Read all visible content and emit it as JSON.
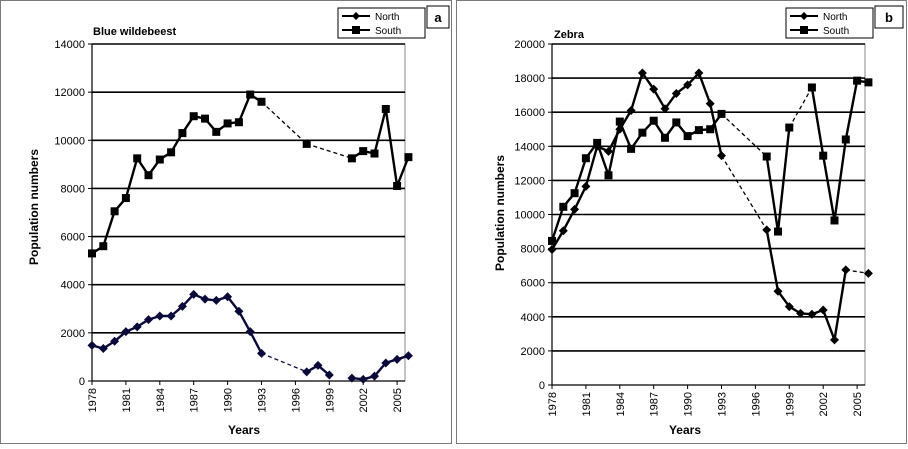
{
  "chart_data": [
    {
      "type": "line",
      "panel_label": "a",
      "title": "Blue wildebeest",
      "xlabel": "Years",
      "ylabel": "Population numbers",
      "xlim": [
        1978,
        2005
      ],
      "ylim": [
        0,
        14000
      ],
      "y_ticks": [
        0,
        2000,
        4000,
        6000,
        8000,
        10000,
        12000,
        14000
      ],
      "y_tick_labels": [
        "0",
        "2000",
        "4000",
        "6000",
        "8000",
        "10000",
        "12000",
        "14000"
      ],
      "x_ticks": [
        1978,
        1981,
        1984,
        1987,
        1990,
        1993,
        1996,
        1999,
        2002,
        2005
      ],
      "x_tick_labels": [
        "1978",
        "1981",
        "1984",
        "1987",
        "1990",
        "1993",
        "1996",
        "1999",
        "2002",
        "2005"
      ],
      "grid": "horizontal",
      "legend_position": "top-right",
      "series": [
        {
          "name": "North",
          "marker": "diamond",
          "color": "#0a0a3a",
          "segments": [
            [
              [
                1978,
                1480
              ],
              [
                1979,
                1350
              ],
              [
                1980,
                1650
              ],
              [
                1981,
                2050
              ],
              [
                1982,
                2250
              ],
              [
                1983,
                2550
              ],
              [
                1984,
                2700
              ],
              [
                1985,
                2700
              ],
              [
                1986,
                3100
              ],
              [
                1987,
                3600
              ],
              [
                1988,
                3400
              ],
              [
                1989,
                3350
              ],
              [
                1990,
                3500
              ],
              [
                1991,
                2900
              ],
              [
                1992,
                2050
              ],
              [
                1993,
                1150
              ]
            ],
            [
              [
                1997,
                380
              ],
              [
                1998,
                650
              ],
              [
                1999,
                250
              ]
            ],
            [
              [
                2001,
                120
              ],
              [
                2002,
                70
              ],
              [
                2003,
                200
              ],
              [
                2004,
                750
              ],
              [
                2005,
                900
              ],
              [
                2006,
                1050
              ]
            ]
          ],
          "gaps": [
            [
              [
                1993,
                1150
              ],
              [
                1997,
                380
              ]
            ]
          ]
        },
        {
          "name": "South",
          "marker": "square",
          "color": "#000000",
          "segments": [
            [
              [
                1978,
                5300
              ],
              [
                1979,
                5600
              ],
              [
                1980,
                7050
              ],
              [
                1981,
                7600
              ],
              [
                1982,
                9250
              ],
              [
                1983,
                8550
              ],
              [
                1984,
                9200
              ],
              [
                1985,
                9500
              ],
              [
                1986,
                10300
              ],
              [
                1987,
                11000
              ],
              [
                1988,
                10900
              ],
              [
                1989,
                10350
              ],
              [
                1990,
                10700
              ],
              [
                1991,
                10750
              ],
              [
                1992,
                11900
              ],
              [
                1993,
                11600
              ]
            ],
            [
              [
                2001,
                9250
              ],
              [
                2002,
                9550
              ],
              [
                2003,
                9450
              ],
              [
                2004,
                11300
              ],
              [
                2005,
                8100
              ],
              [
                2006,
                9300
              ]
            ]
          ],
          "gaps": [
            [
              [
                1993,
                11600
              ],
              [
                1997,
                9850
              ]
            ],
            [
              [
                1997,
                9850
              ],
              [
                2001,
                9250
              ]
            ]
          ],
          "isolated": [
            [
              1997,
              9850
            ]
          ]
        }
      ]
    },
    {
      "type": "line",
      "panel_label": "b",
      "title": "Zebra",
      "xlabel": "Years",
      "ylabel": "Population numbers",
      "xlim": [
        1978,
        2005
      ],
      "ylim": [
        0,
        20000
      ],
      "y_ticks": [
        0,
        2000,
        4000,
        6000,
        8000,
        10000,
        12000,
        14000,
        16000,
        18000,
        20000
      ],
      "y_tick_labels": [
        "0",
        "2000",
        "4000",
        "6000",
        "8000",
        "10000",
        "12000",
        "14000",
        "16000",
        "18000",
        "20000"
      ],
      "x_ticks": [
        1978,
        1981,
        1984,
        1987,
        1990,
        1993,
        1996,
        1999,
        2002,
        2005
      ],
      "x_tick_labels": [
        "1978",
        "1981",
        "1984",
        "1987",
        "1990",
        "1993",
        "1996",
        "1999",
        "2002",
        "2005"
      ],
      "grid": "horizontal",
      "legend_position": "top-right",
      "series": [
        {
          "name": "North",
          "marker": "diamond",
          "color": "#000000",
          "segments": [
            [
              [
                1978,
                7950
              ],
              [
                1979,
                9050
              ],
              [
                1980,
                10300
              ],
              [
                1981,
                11650
              ],
              [
                1982,
                14000
              ],
              [
                1983,
                13700
              ],
              [
                1984,
                15000
              ],
              [
                1985,
                16100
              ],
              [
                1986,
                18300
              ],
              [
                1987,
                17350
              ],
              [
                1988,
                16200
              ],
              [
                1989,
                17100
              ],
              [
                1990,
                17600
              ],
              [
                1991,
                18300
              ],
              [
                1992,
                16500
              ],
              [
                1993,
                13450
              ]
            ],
            [
              [
                1997,
                9100
              ],
              [
                1998,
                5500
              ],
              [
                1999,
                4600
              ],
              [
                2000,
                4200
              ],
              [
                2001,
                4150
              ],
              [
                2002,
                4400
              ],
              [
                2003,
                2650
              ],
              [
                2004,
                6750
              ]
            ]
          ],
          "gaps": [
            [
              [
                1993,
                13450
              ],
              [
                1997,
                9100
              ]
            ],
            [
              [
                2004,
                6750
              ],
              [
                2006,
                6550
              ]
            ]
          ],
          "isolated": [
            [
              2006,
              6550
            ]
          ]
        },
        {
          "name": "South",
          "marker": "square",
          "color": "#000000",
          "segments": [
            [
              [
                1978,
                8450
              ],
              [
                1979,
                10450
              ],
              [
                1980,
                11250
              ],
              [
                1981,
                13300
              ],
              [
                1982,
                14200
              ],
              [
                1983,
                12300
              ],
              [
                1984,
                15450
              ],
              [
                1985,
                13850
              ],
              [
                1986,
                14800
              ],
              [
                1987,
                15500
              ],
              [
                1988,
                14500
              ],
              [
                1989,
                15400
              ],
              [
                1990,
                14600
              ],
              [
                1991,
                14950
              ],
              [
                1992,
                15000
              ],
              [
                1993,
                15900
              ]
            ],
            [
              [
                1997,
                13400
              ],
              [
                1998,
                9000
              ],
              [
                1999,
                15100
              ]
            ],
            [
              [
                2001,
                17450
              ],
              [
                2002,
                13450
              ],
              [
                2003,
                9650
              ],
              [
                2004,
                14400
              ],
              [
                2005,
                17850
              ],
              [
                2006,
                17750
              ]
            ]
          ],
          "gaps": [
            [
              [
                1993,
                15900
              ],
              [
                1997,
                13400
              ]
            ],
            [
              [
                1999,
                15100
              ],
              [
                2001,
                17450
              ]
            ]
          ]
        }
      ]
    }
  ]
}
